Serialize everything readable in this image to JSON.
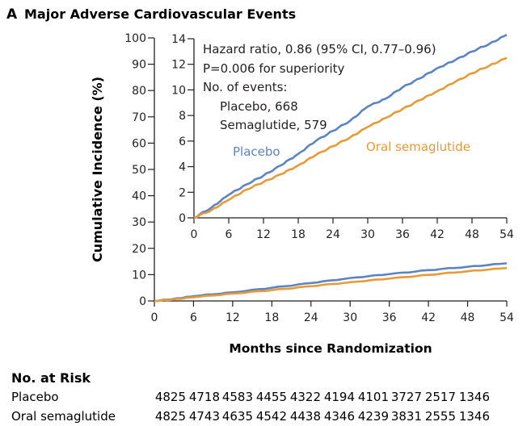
{
  "figure": {
    "panel_letter": "A",
    "panel_title": "Major Adverse Cardiovascular Events"
  },
  "colors": {
    "placebo": "#5b84c4",
    "oral_semaglutide": "#e99a35",
    "axis": "#231f20"
  },
  "chart_data": [
    {
      "type": "line",
      "id": "main",
      "title": "Major Adverse Cardiovascular Events",
      "xlabel": "Months since Randomization",
      "ylabel": "Cumulative Incidence (%)",
      "xlim": [
        0,
        54
      ],
      "ylim": [
        0,
        100
      ],
      "xticks": [
        0,
        6,
        12,
        18,
        24,
        30,
        36,
        42,
        48,
        54
      ],
      "yticks": [
        0,
        10,
        20,
        30,
        40,
        50,
        60,
        70,
        80,
        90,
        100
      ],
      "series": [
        {
          "name": "Placebo",
          "color": "#5b84c4",
          "x": [
            0,
            3,
            6,
            12,
            18,
            24,
            30,
            36,
            42,
            48,
            54
          ],
          "y": [
            0,
            0.8,
            1.8,
            3.3,
            5.0,
            6.8,
            8.7,
            10.2,
            11.7,
            13.0,
            14.3
          ]
        },
        {
          "name": "Oral semaglutide",
          "color": "#e99a35",
          "x": [
            0,
            3,
            6,
            12,
            18,
            24,
            30,
            36,
            42,
            48,
            54
          ],
          "y": [
            0,
            0.6,
            1.4,
            2.8,
            4.1,
            5.6,
            7.1,
            8.5,
            9.9,
            11.3,
            12.5
          ]
        }
      ]
    },
    {
      "type": "line",
      "id": "inset",
      "xlim": [
        0,
        54
      ],
      "ylim": [
        0,
        14
      ],
      "xticks": [
        0,
        6,
        12,
        18,
        24,
        30,
        36,
        42,
        48,
        54
      ],
      "yticks": [
        0,
        2,
        4,
        6,
        8,
        10,
        12,
        14
      ],
      "series": [
        {
          "name": "Placebo",
          "color": "#5b84c4",
          "x": [
            0,
            3,
            6,
            9,
            12,
            15,
            18,
            21,
            24,
            27,
            30,
            33,
            36,
            39,
            42,
            45,
            48,
            51,
            54
          ],
          "y": [
            0,
            0.8,
            1.8,
            2.6,
            3.3,
            4.1,
            5.0,
            6.0,
            6.8,
            7.6,
            8.7,
            9.3,
            10.2,
            10.9,
            11.7,
            12.3,
            13.0,
            13.6,
            14.3
          ]
        },
        {
          "name": "Oral semaglutide",
          "color": "#e99a35",
          "x": [
            0,
            3,
            6,
            9,
            12,
            15,
            18,
            21,
            24,
            27,
            30,
            33,
            36,
            39,
            42,
            45,
            48,
            51,
            54
          ],
          "y": [
            0,
            0.6,
            1.4,
            2.2,
            2.8,
            3.4,
            4.1,
            4.9,
            5.6,
            6.3,
            7.1,
            7.8,
            8.5,
            9.2,
            9.9,
            10.6,
            11.3,
            11.9,
            12.5
          ]
        }
      ],
      "annotations": {
        "hazard_ratio": "Hazard ratio, 0.86 (95% CI, 0.77–0.96)",
        "p_value": "P=0.006 for superiority",
        "events_header": "No. of events:",
        "events_placebo": "Placebo, 668",
        "events_oral": "Semaglutide, 579",
        "label_placebo": "Placebo",
        "label_oral": "Oral semaglutide"
      }
    }
  ],
  "risk_table": {
    "title": "No. at Risk",
    "rows": [
      {
        "label": "Placebo",
        "values": [
          4825,
          4718,
          4583,
          4455,
          4322,
          4194,
          4101,
          3727,
          2517,
          1346
        ]
      },
      {
        "label": "Oral semaglutide",
        "values": [
          4825,
          4743,
          4635,
          4542,
          4438,
          4346,
          4239,
          3831,
          2555,
          1346
        ]
      }
    ]
  }
}
